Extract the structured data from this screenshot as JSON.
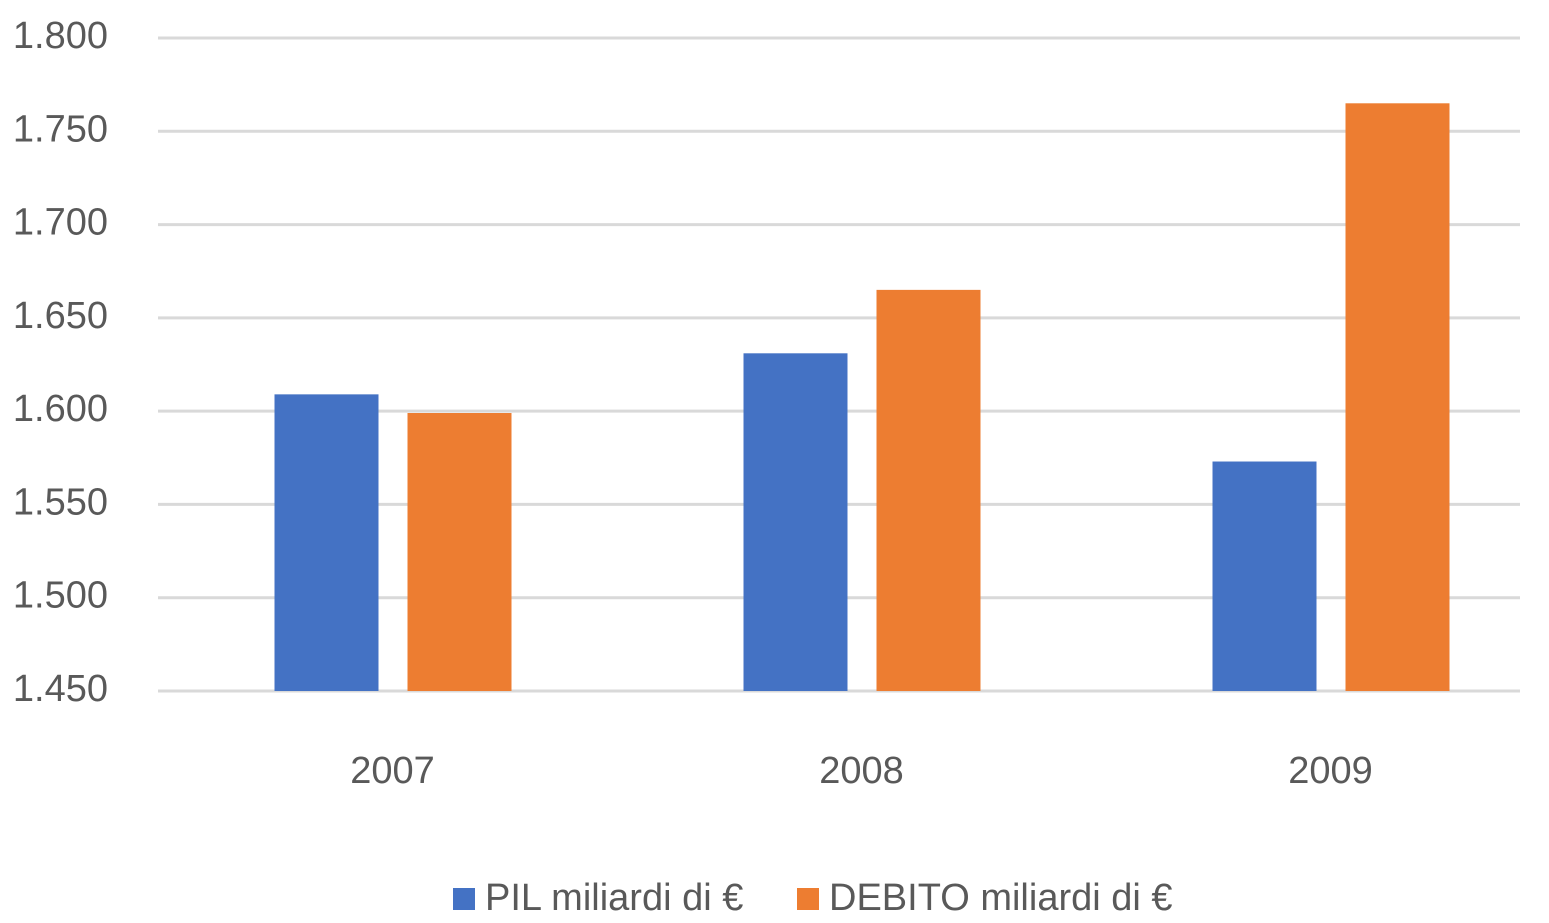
{
  "chart_data": {
    "type": "bar",
    "categories": [
      "2007",
      "2008",
      "2009"
    ],
    "series": [
      {
        "name": "PIL miliardi di €",
        "color": "#4472c4",
        "values": [
          1609,
          1631,
          1573
        ]
      },
      {
        "name": "DEBITO miliardi di €",
        "color": "#ed7d31",
        "values": [
          1599,
          1665,
          1765
        ]
      }
    ],
    "ylim": [
      1450,
      1800
    ],
    "yticks": [
      {
        "value": 1450,
        "label": "1.450"
      },
      {
        "value": 1500,
        "label": "1.500"
      },
      {
        "value": 1550,
        "label": "1.550"
      },
      {
        "value": 1600,
        "label": "1.600"
      },
      {
        "value": 1650,
        "label": "1.650"
      },
      {
        "value": 1700,
        "label": "1.700"
      },
      {
        "value": 1750,
        "label": "1.750"
      },
      {
        "value": 1800,
        "label": "1.800"
      }
    ],
    "grid": true,
    "legend": "bottom"
  }
}
